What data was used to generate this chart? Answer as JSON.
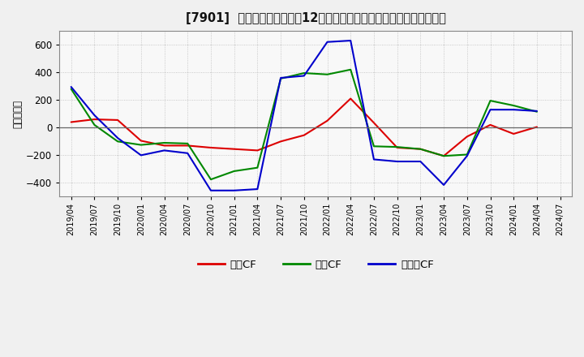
{
  "title": "[7901]  キャッシュフローの12か月移動合計の対前年同期増減額の推移",
  "ylabel": "（百万円）",
  "background_color": "#f0f0f0",
  "plot_background": "#f8f8f8",
  "grid_color": "#bbbbbb",
  "ylim": [
    -500,
    700
  ],
  "yticks": [
    -400,
    -200,
    0,
    200,
    400,
    600
  ],
  "x_labels": [
    "2019/04",
    "2019/07",
    "2019/10",
    "2020/01",
    "2020/04",
    "2020/07",
    "2020/10",
    "2021/01",
    "2021/04",
    "2021/07",
    "2021/10",
    "2022/01",
    "2022/04",
    "2022/07",
    "2022/10",
    "2023/01",
    "2023/04",
    "2023/07",
    "2023/10",
    "2024/01",
    "2024/04",
    "2024/07"
  ],
  "series_order": [
    "営業CF",
    "投資CF",
    "フリーCF"
  ],
  "series": {
    "営業CF": {
      "color": "#dd0000",
      "data": [
        40,
        60,
        55,
        -95,
        -130,
        -130,
        -145,
        -155,
        -165,
        -100,
        -55,
        50,
        210,
        35,
        -145,
        -155,
        -205,
        -65,
        20,
        -45,
        5,
        null
      ]
    },
    "投資CF": {
      "color": "#008800",
      "data": [
        280,
        20,
        -100,
        -125,
        -110,
        -115,
        -375,
        -315,
        -290,
        355,
        395,
        385,
        420,
        -135,
        -140,
        -155,
        -205,
        -195,
        195,
        160,
        115,
        null
      ]
    },
    "フリーCF": {
      "color": "#0000cc",
      "data": [
        295,
        90,
        -75,
        -200,
        -165,
        -185,
        -455,
        -455,
        -445,
        360,
        375,
        620,
        630,
        -230,
        -245,
        -245,
        -415,
        -205,
        130,
        130,
        120,
        null
      ]
    }
  },
  "legend_labels": [
    "営業CF",
    "投資CF",
    "フリーCF"
  ],
  "legend_colors": [
    "#dd0000",
    "#008800",
    "#0000cc"
  ]
}
